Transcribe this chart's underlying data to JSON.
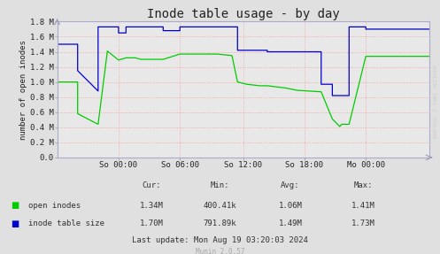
{
  "title": "Inode table usage - by day",
  "ylabel": "number of open inodes",
  "background_color": "#e0e0e0",
  "plot_bg_color": "#e8e8e8",
  "grid_color": "#ff8888",
  "ylim": [
    0.0,
    1800000.0
  ],
  "yticks": [
    0.0,
    200000.0,
    400000.0,
    600000.0,
    800000.0,
    1000000.0,
    1200000.0,
    1400000.0,
    1600000.0,
    1800000.0
  ],
  "ytick_labels": [
    "0.0",
    "0.2 M",
    "0.4 M",
    "0.6 M",
    "0.8 M",
    "1.0 M",
    "1.2 M",
    "1.4 M",
    "1.6 M",
    "1.8 M"
  ],
  "xtick_labels": [
    "So 00:00",
    "So 06:00",
    "So 12:00",
    "So 18:00",
    "Mo 00:00"
  ],
  "xtick_pos": [
    0.165,
    0.33,
    0.5,
    0.665,
    0.83
  ],
  "green_color": "#00cc00",
  "blue_color": "#0000cc",
  "watermark": "RRDTOOL / TOBI OETIKER",
  "footer_text": "Munin 2.0.57",
  "legend_labels": [
    "open inodes",
    "inode table size"
  ],
  "stats_cur": [
    "1.34M",
    "1.70M"
  ],
  "stats_min": [
    "400.41k",
    "791.89k"
  ],
  "stats_avg": [
    "1.06M",
    "1.49M"
  ],
  "stats_max": [
    "1.41M",
    "1.73M"
  ],
  "last_update": "Last update: Mon Aug 19 03:20:03 2024",
  "green_x": [
    0.0,
    0.055,
    0.055,
    0.11,
    0.11,
    0.135,
    0.135,
    0.165,
    0.165,
    0.185,
    0.185,
    0.21,
    0.21,
    0.225,
    0.225,
    0.265,
    0.265,
    0.285,
    0.285,
    0.33,
    0.33,
    0.38,
    0.38,
    0.43,
    0.43,
    0.47,
    0.47,
    0.485,
    0.485,
    0.51,
    0.51,
    0.545,
    0.545,
    0.565,
    0.565,
    0.615,
    0.615,
    0.645,
    0.645,
    0.71,
    0.71,
    0.74,
    0.74,
    0.76,
    0.76,
    0.765,
    0.765,
    0.785,
    0.785,
    0.83,
    0.83,
    1.0
  ],
  "green_y": [
    1000000.0,
    1000000.0,
    580000.0,
    440000.0,
    440000.0,
    1410000.0,
    1410000.0,
    1290000.0,
    1290000.0,
    1320000.0,
    1320000.0,
    1320000.0,
    1320000.0,
    1300000.0,
    1300000.0,
    1300000.0,
    1300000.0,
    1300000.0,
    1300000.0,
    1370000.0,
    1370000.0,
    1370000.0,
    1370000.0,
    1370000.0,
    1370000.0,
    1350000.0,
    1350000.0,
    1000000.0,
    1000000.0,
    970000.0,
    970000.0,
    950000.0,
    950000.0,
    950000.0,
    950000.0,
    920000.0,
    920000.0,
    890000.0,
    890000.0,
    870000.0,
    870000.0,
    510000.0,
    510000.0,
    410000.0,
    410000.0,
    440000.0,
    440000.0,
    440000.0,
    440000.0,
    1340000.0,
    1340000.0,
    1340000.0
  ],
  "blue_x": [
    0.0,
    0.055,
    0.055,
    0.11,
    0.11,
    0.165,
    0.165,
    0.185,
    0.185,
    0.285,
    0.285,
    0.33,
    0.33,
    0.38,
    0.38,
    0.485,
    0.485,
    0.51,
    0.51,
    0.565,
    0.565,
    0.615,
    0.615,
    0.71,
    0.71,
    0.74,
    0.74,
    0.76,
    0.76,
    0.785,
    0.785,
    0.83,
    0.83,
    1.0
  ],
  "blue_y": [
    1500000.0,
    1500000.0,
    1150000.0,
    880000.0,
    1730000.0,
    1730000.0,
    1650000.0,
    1650000.0,
    1730000.0,
    1730000.0,
    1680000.0,
    1680000.0,
    1730000.0,
    1730000.0,
    1730000.0,
    1730000.0,
    1420000.0,
    1420000.0,
    1420000.0,
    1420000.0,
    1400000.0,
    1400000.0,
    1400000.0,
    1400000.0,
    970000.0,
    970000.0,
    820000.0,
    820000.0,
    820000.0,
    820000.0,
    1730000.0,
    1730000.0,
    1700000.0,
    1700000.0
  ]
}
